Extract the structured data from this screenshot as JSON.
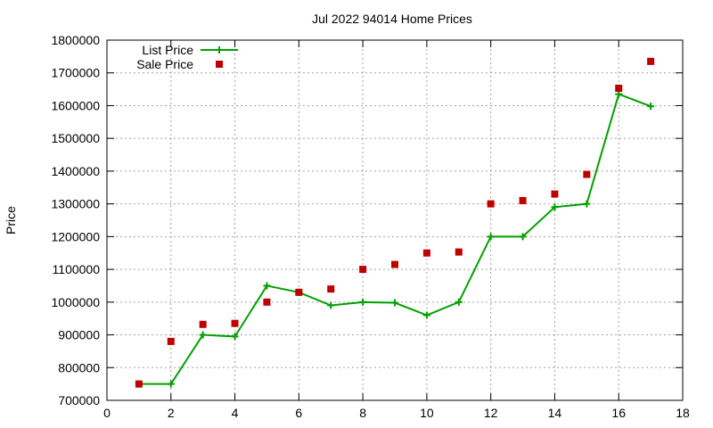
{
  "chart_data": {
    "type": "line",
    "title": "Jul 2022 94014 Home Prices",
    "xlabel": "",
    "ylabel": "Price",
    "xlim": [
      0,
      18
    ],
    "ylim": [
      700000,
      1800000
    ],
    "xticks": [
      0,
      2,
      4,
      6,
      8,
      10,
      12,
      14,
      16,
      18
    ],
    "yticks": [
      700000,
      800000,
      900000,
      1000000,
      1100000,
      1200000,
      1300000,
      1400000,
      1500000,
      1600000,
      1700000,
      1800000
    ],
    "grid": true,
    "legend_position": "top-left",
    "series": [
      {
        "name": "List Price",
        "style": "line-with-plus-markers",
        "color": "#00a000",
        "x": [
          1,
          2,
          3,
          4,
          5,
          6,
          7,
          8,
          9,
          10,
          11,
          12,
          13,
          14,
          15,
          16,
          17
        ],
        "y": [
          750000,
          750000,
          900000,
          895000,
          1050000,
          1030000,
          990000,
          1000000,
          998000,
          960000,
          1000000,
          1200000,
          1200000,
          1290000,
          1300000,
          1635000,
          1598000
        ]
      },
      {
        "name": "Sale Price",
        "style": "square-markers",
        "color": "#c00000",
        "x": [
          1,
          2,
          3,
          4,
          5,
          6,
          7,
          8,
          9,
          10,
          11,
          12,
          13,
          14,
          15,
          16,
          17
        ],
        "y": [
          750000,
          880000,
          932000,
          935000,
          1000000,
          1030000,
          1040000,
          1100000,
          1115000,
          1150000,
          1153000,
          1300000,
          1310000,
          1330000,
          1390000,
          1653000,
          1735000
        ]
      }
    ]
  }
}
